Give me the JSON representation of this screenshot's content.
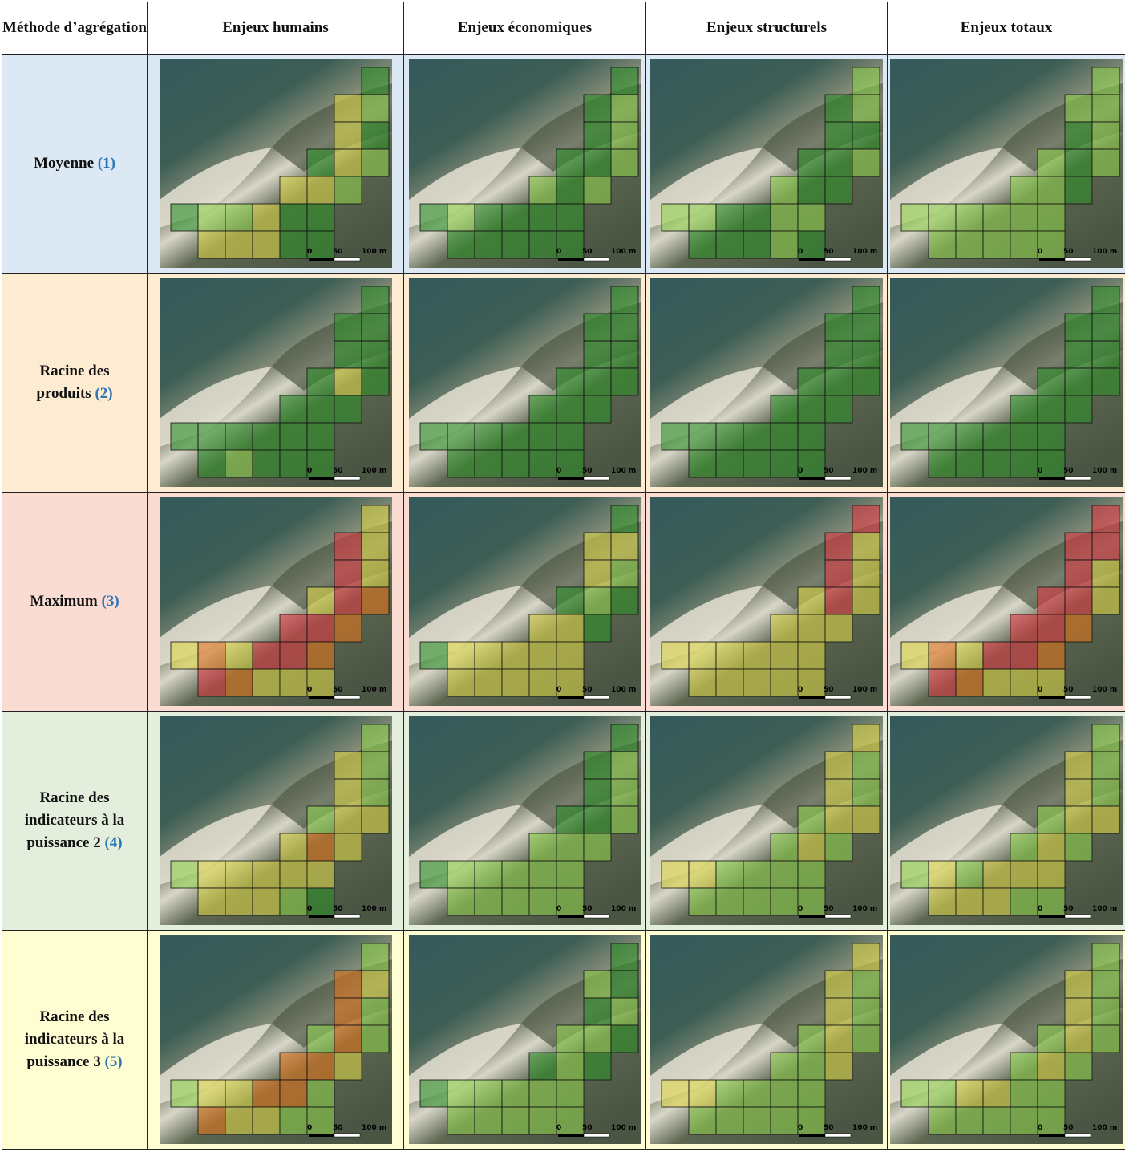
{
  "table": {
    "header": [
      "Méthode d’agrégation",
      "Enjeux humains",
      "Enjeux économiques",
      "Enjeux structurels",
      "Enjeux totaux"
    ],
    "rows": [
      {
        "label": "Moyenne",
        "ref": "(1)"
      },
      {
        "label": "Racine des produits",
        "ref": "(2)"
      },
      {
        "label": "Maximum",
        "ref": "(3)"
      },
      {
        "label": "Racine des indicateurs à la puissance 2",
        "ref": "(4)"
      },
      {
        "label": "Racine des indicateurs à la puissance 3",
        "ref": "(5)"
      }
    ],
    "scale_labels": [
      "0",
      "50",
      "100 m"
    ]
  }
}
